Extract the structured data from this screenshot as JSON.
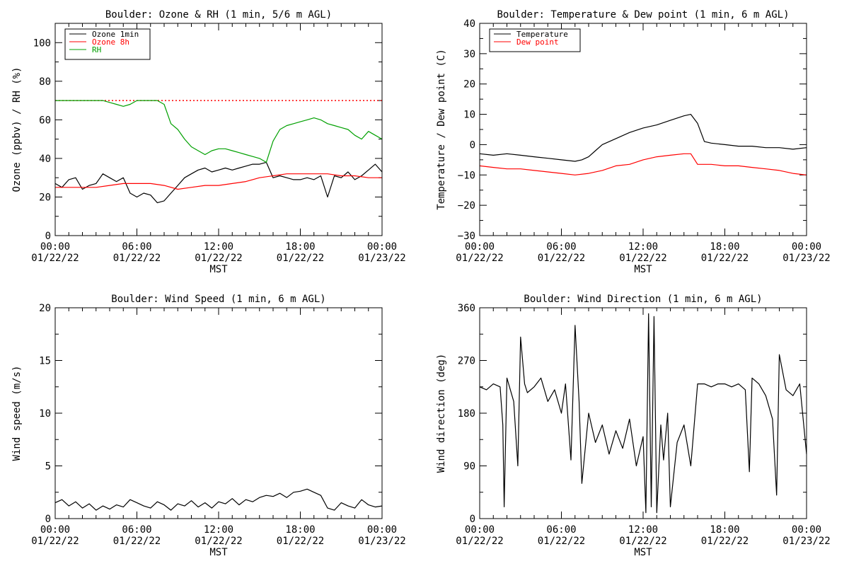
{
  "colors": {
    "ozone_1min": "#000000",
    "ozone_8h": "#ff0000",
    "rh": "#00a000",
    "temperature": "#000000",
    "dew_point": "#ff0000",
    "wind": "#000000",
    "threshold": "#ff0000"
  },
  "chart_data": [
    {
      "type": "line",
      "title": "Boulder: Ozone & RH (1 min, 5/6 m AGL)",
      "xlabel": "MST",
      "ylabel": "Ozone (ppbv) / RH (%)",
      "xlim": [
        0,
        24
      ],
      "ylim": [
        0,
        110
      ],
      "xticks": [
        {
          "x": 0,
          "time": "00:00",
          "date": "01/22/22"
        },
        {
          "x": 6,
          "time": "06:00",
          "date": "01/22/22"
        },
        {
          "x": 12,
          "time": "12:00",
          "date": "01/22/22"
        },
        {
          "x": 18,
          "time": "18:00",
          "date": "01/22/22"
        },
        {
          "x": 24,
          "time": "00:00",
          "date": "01/23/22"
        }
      ],
      "yticks": [
        {
          "value": 0,
          "label": "0"
        },
        {
          "value": 20,
          "label": "20"
        },
        {
          "value": 40,
          "label": "40"
        },
        {
          "value": 60,
          "label": "60"
        },
        {
          "value": 80,
          "label": "80"
        },
        {
          "value": 100,
          "label": "100"
        }
      ],
      "legend": [
        "Ozone 1min",
        "Ozone 8h",
        "RH"
      ],
      "legend_position": "top-left",
      "reference_line": {
        "y": 70,
        "style": "dotted"
      },
      "series": [
        {
          "name": "Ozone 1min",
          "color_key": "ozone_1min",
          "x": [
            0,
            0.5,
            1,
            1.5,
            2,
            2.5,
            3,
            3.5,
            4,
            4.5,
            5,
            5.5,
            6,
            6.5,
            7,
            7.5,
            8,
            8.5,
            9,
            9.5,
            10,
            10.5,
            11,
            11.5,
            12,
            12.5,
            13,
            13.5,
            14,
            14.5,
            15,
            15.5,
            16,
            16.5,
            17,
            17.5,
            18,
            18.5,
            19,
            19.5,
            20,
            20.5,
            21,
            21.5,
            22,
            22.5,
            23,
            23.5,
            24
          ],
          "y": [
            27,
            25,
            29,
            30,
            24,
            26,
            27,
            32,
            30,
            28,
            30,
            22,
            20,
            22,
            21,
            17,
            18,
            22,
            26,
            30,
            32,
            34,
            35,
            33,
            34,
            35,
            34,
            35,
            36,
            37,
            37,
            38,
            30,
            31,
            30,
            29,
            29,
            30,
            29,
            31,
            20,
            31,
            30,
            33,
            29,
            31,
            34,
            37,
            33
          ]
        },
        {
          "name": "Ozone 8h",
          "color_key": "ozone_8h",
          "x": [
            0,
            1,
            2,
            3,
            4,
            5,
            6,
            7,
            8,
            9,
            10,
            11,
            12,
            13,
            14,
            15,
            16,
            17,
            18,
            19,
            20,
            21,
            22,
            23,
            24
          ],
          "y": [
            25,
            25,
            25,
            25,
            26,
            27,
            27,
            27,
            26,
            24,
            25,
            26,
            26,
            27,
            28,
            30,
            31,
            32,
            32,
            32,
            32,
            31,
            31,
            30,
            30
          ]
        },
        {
          "name": "RH",
          "color_key": "rh",
          "x": [
            0,
            0.5,
            1,
            1.5,
            2,
            2.5,
            3,
            3.5,
            4,
            4.5,
            5,
            5.5,
            6,
            6.5,
            7,
            7.5,
            8,
            8.5,
            9,
            9.5,
            10,
            10.5,
            11,
            11.5,
            12,
            12.5,
            13,
            13.5,
            14,
            14.5,
            15,
            15.5,
            16,
            16.5,
            17,
            17.5,
            18,
            18.5,
            19,
            19.5,
            20,
            20.5,
            21,
            21.5,
            22,
            22.5,
            23,
            23.5,
            24
          ],
          "y": [
            70,
            70,
            70,
            70,
            70,
            70,
            70,
            70,
            69,
            68,
            67,
            68,
            70,
            70,
            70,
            70,
            68,
            58,
            55,
            50,
            46,
            44,
            42,
            44,
            45,
            45,
            44,
            43,
            42,
            41,
            40,
            38,
            49,
            55,
            57,
            58,
            59,
            60,
            61,
            60,
            58,
            57,
            56,
            55,
            52,
            50,
            54,
            52,
            50
          ]
        }
      ]
    },
    {
      "type": "line",
      "title": "Boulder: Temperature & Dew point (1 min, 6 m AGL)",
      "xlabel": "MST",
      "ylabel": "Temperature / Dew point (C)",
      "xlim": [
        0,
        24
      ],
      "ylim": [
        -30,
        40
      ],
      "xticks": [
        {
          "x": 0,
          "time": "00:00",
          "date": "01/22/22"
        },
        {
          "x": 6,
          "time": "06:00",
          "date": "01/22/22"
        },
        {
          "x": 12,
          "time": "12:00",
          "date": "01/22/22"
        },
        {
          "x": 18,
          "time": "18:00",
          "date": "01/22/22"
        },
        {
          "x": 24,
          "time": "00:00",
          "date": "01/23/22"
        }
      ],
      "yticks": [
        {
          "value": -30,
          "label": "−30"
        },
        {
          "value": -20,
          "label": "−20"
        },
        {
          "value": -10,
          "label": "−10"
        },
        {
          "value": 0,
          "label": "0"
        },
        {
          "value": 10,
          "label": "10"
        },
        {
          "value": 20,
          "label": "20"
        },
        {
          "value": 30,
          "label": "30"
        },
        {
          "value": 40,
          "label": "40"
        }
      ],
      "legend": [
        "Temperature",
        "Dew point"
      ],
      "legend_position": "top-left",
      "series": [
        {
          "name": "Temperature",
          "color_key": "temperature",
          "x": [
            0,
            1,
            2,
            3,
            4,
            5,
            6,
            7,
            7.5,
            8,
            8.5,
            9,
            10,
            11,
            12,
            13,
            14,
            15,
            15.5,
            16,
            16.5,
            17,
            18,
            19,
            20,
            21,
            22,
            23,
            24
          ],
          "y": [
            -3,
            -3.5,
            -3,
            -3.5,
            -4,
            -4.5,
            -5,
            -5.5,
            -5,
            -4,
            -2,
            0,
            2,
            4,
            5.5,
            6.5,
            8,
            9.5,
            10,
            7,
            1,
            0.5,
            0,
            -0.5,
            -0.5,
            -1,
            -1,
            -1.5,
            -1
          ]
        },
        {
          "name": "Dew point",
          "color_key": "dew_point",
          "x": [
            0,
            1,
            2,
            3,
            4,
            5,
            6,
            7,
            8,
            9,
            10,
            11,
            12,
            13,
            14,
            15,
            15.5,
            16,
            16.5,
            17,
            18,
            19,
            20,
            21,
            22,
            23,
            24
          ],
          "y": [
            -7,
            -7.5,
            -8,
            -8,
            -8.5,
            -9,
            -9.5,
            -10,
            -9.5,
            -8.5,
            -7,
            -6.5,
            -5,
            -4,
            -3.5,
            -3,
            -3,
            -6.5,
            -6.5,
            -6.5,
            -7,
            -7,
            -7.5,
            -8,
            -8.5,
            -9.5,
            -10
          ]
        }
      ]
    },
    {
      "type": "line",
      "title": "Boulder: Wind Speed (1 min, 6 m AGL)",
      "xlabel": "MST",
      "ylabel": "Wind speed (m/s)",
      "xlim": [
        0,
        24
      ],
      "ylim": [
        0,
        20
      ],
      "xticks": [
        {
          "x": 0,
          "time": "00:00",
          "date": "01/22/22"
        },
        {
          "x": 6,
          "time": "06:00",
          "date": "01/22/22"
        },
        {
          "x": 12,
          "time": "12:00",
          "date": "01/22/22"
        },
        {
          "x": 18,
          "time": "18:00",
          "date": "01/22/22"
        },
        {
          "x": 24,
          "time": "00:00",
          "date": "01/23/22"
        }
      ],
      "yticks": [
        {
          "value": 0,
          "label": "0"
        },
        {
          "value": 5,
          "label": "5"
        },
        {
          "value": 10,
          "label": "10"
        },
        {
          "value": 15,
          "label": "15"
        },
        {
          "value": 20,
          "label": "20"
        }
      ],
      "series": [
        {
          "name": "",
          "color_key": "wind",
          "x": [
            0,
            0.5,
            1,
            1.5,
            2,
            2.5,
            3,
            3.5,
            4,
            4.5,
            5,
            5.5,
            6,
            6.5,
            7,
            7.5,
            8,
            8.5,
            9,
            9.5,
            10,
            10.5,
            11,
            11.5,
            12,
            12.5,
            13,
            13.5,
            14,
            14.5,
            15,
            15.5,
            16,
            16.5,
            17,
            17.5,
            18,
            18.5,
            19,
            19.5,
            20,
            20.5,
            21,
            21.5,
            22,
            22.5,
            23,
            23.5,
            24
          ],
          "y": [
            1.5,
            1.8,
            1.2,
            1.6,
            1.0,
            1.4,
            0.8,
            1.2,
            0.9,
            1.3,
            1.1,
            1.8,
            1.5,
            1.2,
            1.0,
            1.6,
            1.3,
            0.8,
            1.4,
            1.2,
            1.7,
            1.1,
            1.5,
            1.0,
            1.6,
            1.4,
            1.9,
            1.3,
            1.8,
            1.6,
            2.0,
            2.2,
            2.1,
            2.4,
            2.0,
            2.5,
            2.6,
            2.8,
            2.5,
            2.2,
            1.0,
            0.8,
            1.5,
            1.2,
            1.0,
            1.8,
            1.3,
            1.1,
            1.2
          ]
        }
      ]
    },
    {
      "type": "line",
      "title": "Boulder: Wind Direction (1 min, 6 m AGL)",
      "xlabel": "MST",
      "ylabel": "Wind direction (deg)",
      "xlim": [
        0,
        24
      ],
      "ylim": [
        0,
        360
      ],
      "xticks": [
        {
          "x": 0,
          "time": "00:00",
          "date": "01/22/22"
        },
        {
          "x": 6,
          "time": "06:00",
          "date": "01/22/22"
        },
        {
          "x": 12,
          "time": "12:00",
          "date": "01/22/22"
        },
        {
          "x": 18,
          "time": "18:00",
          "date": "01/22/22"
        },
        {
          "x": 24,
          "time": "00:00",
          "date": "01/23/22"
        }
      ],
      "yticks": [
        {
          "value": 0,
          "label": "0"
        },
        {
          "value": 90,
          "label": "90"
        },
        {
          "value": 180,
          "label": "180"
        },
        {
          "value": 270,
          "label": "270"
        },
        {
          "value": 360,
          "label": "360"
        }
      ],
      "series": [
        {
          "name": "",
          "color_key": "wind",
          "x": [
            0,
            0.5,
            1,
            1.5,
            1.7,
            1.8,
            2,
            2.5,
            2.8,
            3,
            3.3,
            3.5,
            4,
            4.5,
            5,
            5.5,
            6,
            6.3,
            6.7,
            7,
            7.3,
            7.5,
            8,
            8.5,
            9,
            9.5,
            10,
            10.5,
            11,
            11.5,
            12,
            12.2,
            12.4,
            12.6,
            12.8,
            13,
            13.3,
            13.5,
            13.8,
            14,
            14.5,
            15,
            15.5,
            16,
            16.5,
            17,
            17.5,
            18,
            18.5,
            19,
            19.5,
            19.8,
            20,
            20.5,
            21,
            21.5,
            21.8,
            22,
            22.5,
            23,
            23.5,
            24
          ],
          "y": [
            225,
            220,
            230,
            225,
            160,
            20,
            240,
            200,
            90,
            310,
            230,
            215,
            225,
            240,
            200,
            220,
            180,
            230,
            100,
            330,
            200,
            60,
            180,
            130,
            160,
            110,
            150,
            120,
            170,
            90,
            140,
            10,
            350,
            20,
            345,
            10,
            160,
            100,
            180,
            20,
            130,
            160,
            90,
            230,
            230,
            225,
            230,
            230,
            225,
            230,
            220,
            80,
            240,
            230,
            210,
            170,
            40,
            280,
            220,
            210,
            230,
            110
          ]
        }
      ]
    }
  ]
}
